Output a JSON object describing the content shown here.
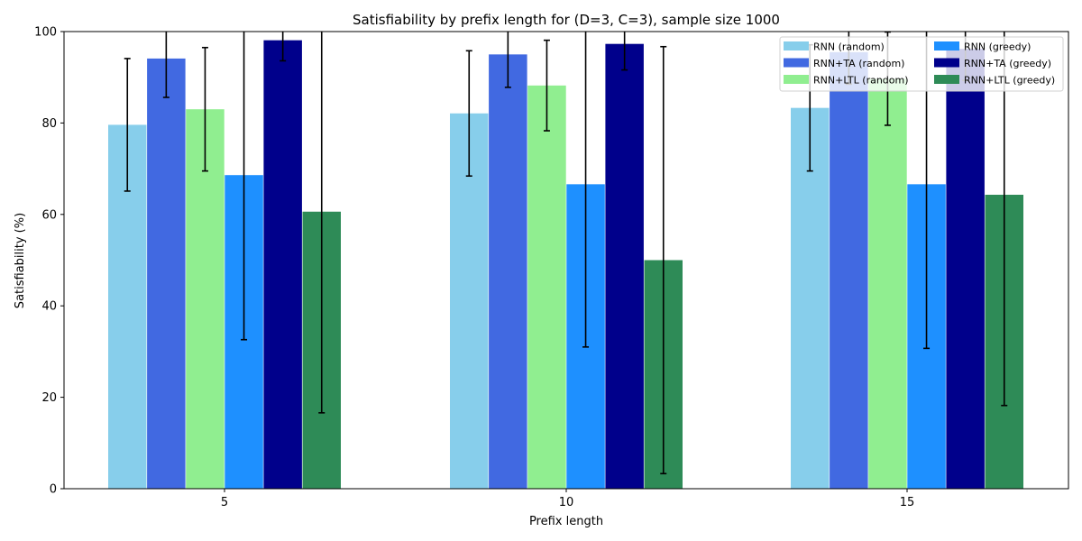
{
  "chart_data": {
    "type": "bar",
    "title": "Satisfiability by prefix length for (D=3, C=3), sample size 1000",
    "xlabel": "Prefix length",
    "ylabel": "Satisfiability (%)",
    "categories": [
      "5",
      "10",
      "15"
    ],
    "ylim": [
      0,
      100
    ],
    "yticks": [
      0,
      20,
      40,
      60,
      80,
      100
    ],
    "grid": false,
    "legend_position": "top-right",
    "series": [
      {
        "name": "RNN (random)",
        "color": "#87CEEB",
        "values": [
          79.6,
          82.1,
          83.3
        ],
        "errors": [
          14.5,
          13.7,
          13.8
        ]
      },
      {
        "name": "RNN+TA (random)",
        "color": "#4169E1",
        "values": [
          94.1,
          95.0,
          95.5
        ],
        "errors": [
          8.5,
          7.2,
          7.0
        ]
      },
      {
        "name": "RNN+LTL (random)",
        "color": "#90EE90",
        "values": [
          83.0,
          88.2,
          89.7
        ],
        "errors": [
          13.5,
          9.9,
          10.2
        ]
      },
      {
        "name": "RNN (greedy)",
        "color": "#1E90FF",
        "values": [
          68.6,
          66.6,
          66.6
        ],
        "errors": [
          36.0,
          35.6,
          35.9
        ]
      },
      {
        "name": "RNN+TA (greedy)",
        "color": "#00008B",
        "values": [
          98.1,
          97.3,
          96.2
        ],
        "errors": [
          4.5,
          5.7,
          6.9
        ]
      },
      {
        "name": "RNN+LTL (greedy)",
        "color": "#2E8B57",
        "values": [
          60.6,
          50.0,
          64.3
        ],
        "errors": [
          44.0,
          46.7,
          46.1
        ]
      }
    ]
  }
}
